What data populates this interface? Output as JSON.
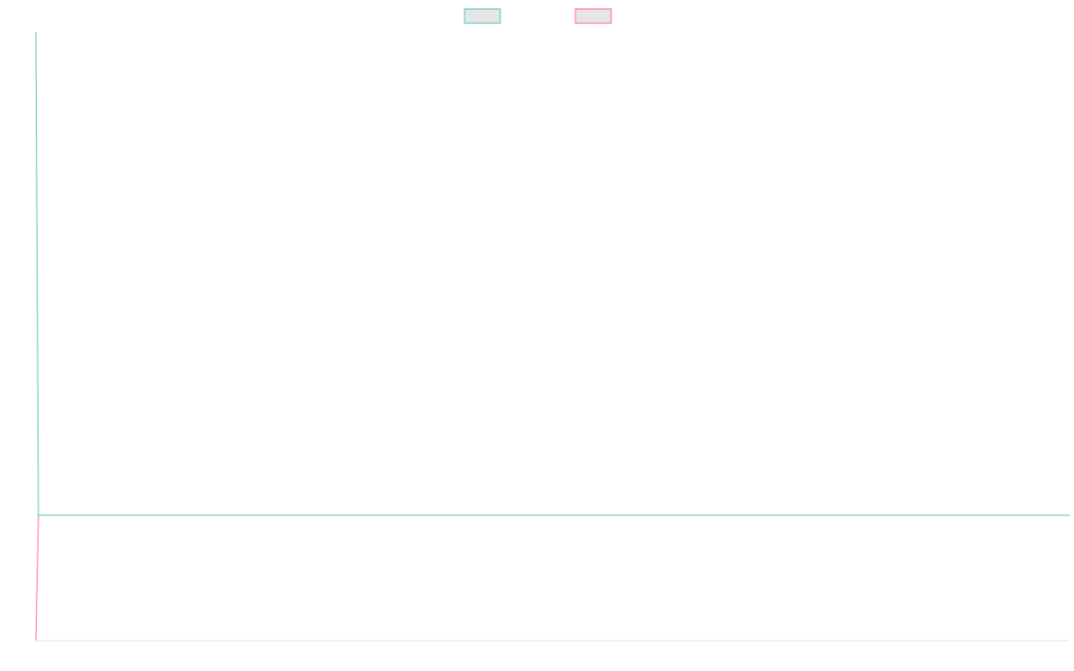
{
  "chart_data": {
    "type": "line",
    "title": "",
    "xlabel": "",
    "ylabel": "",
    "legend_position": "top-center",
    "grid": false,
    "x": [
      0,
      1,
      100
    ],
    "ylim": [
      0,
      1
    ],
    "series": [
      {
        "color": "#4bc0c0",
        "fill": "#e6e6e6",
        "values": [
          1,
          0.206,
          0.206
        ]
      },
      {
        "color": "#ff6384",
        "fill": "#e6e6e6",
        "values": [
          0,
          0.206,
          null
        ]
      }
    ]
  },
  "colors": {
    "baseline": "#e0e0e0"
  }
}
